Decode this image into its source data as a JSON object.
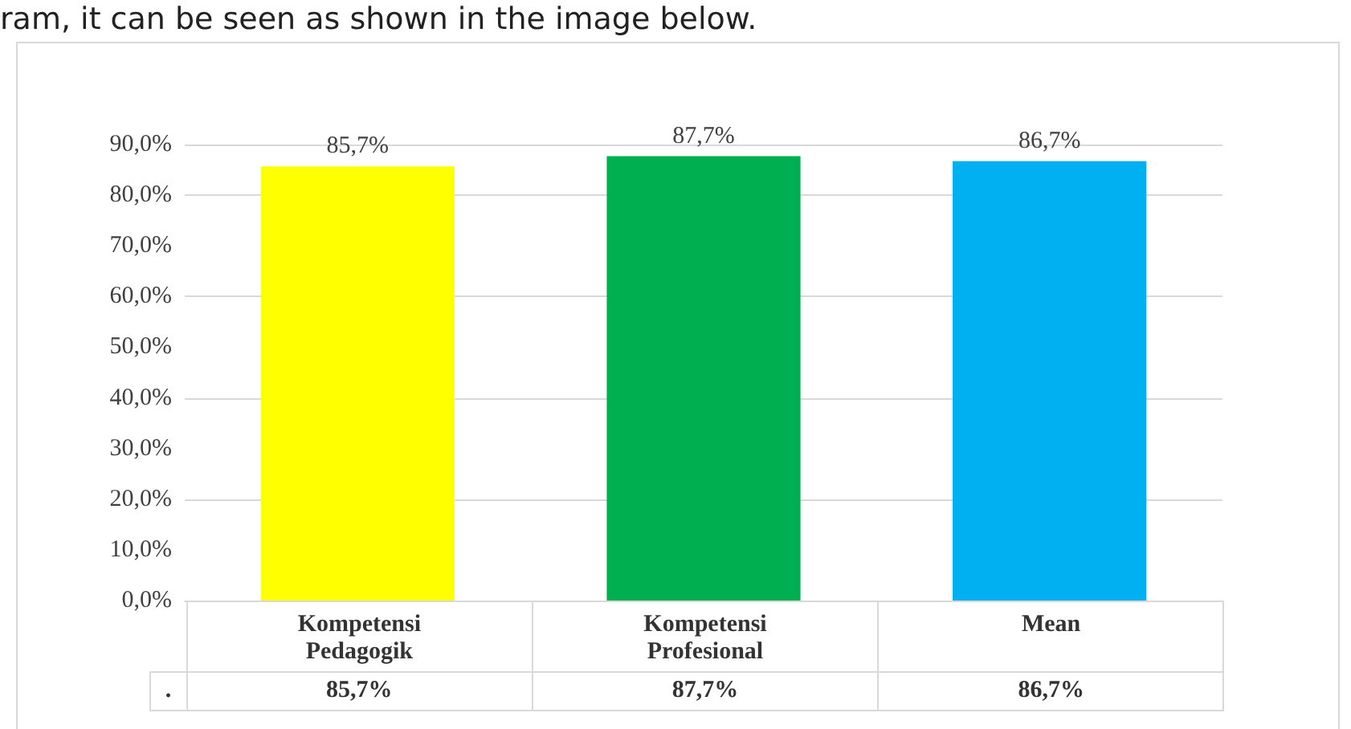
{
  "chart_data": {
    "type": "bar",
    "annotations": [
      "ram, it can be seen as shown in the image below."
    ],
    "categories": [
      "Kompetensi Pedagogik",
      "Kompetensi Profesional",
      "Mean"
    ],
    "series": [
      {
        "name": ".",
        "values": [
          85.7,
          87.7,
          86.7
        ],
        "colors": [
          "#ffff00",
          "#00b050",
          "#00b0f0"
        ],
        "value_labels": [
          "85,7%",
          "87,7%",
          "86,7%"
        ]
      }
    ],
    "ylim": [
      0,
      90
    ],
    "yticks": [
      {
        "value": 0,
        "label": "0,0%"
      },
      {
        "value": 10,
        "label": "10,0%"
      },
      {
        "value": 20,
        "label": "20,0%"
      },
      {
        "value": 30,
        "label": "30,0%"
      },
      {
        "value": 40,
        "label": "40,0%"
      },
      {
        "value": 50,
        "label": "50,0%"
      },
      {
        "value": 60,
        "label": "60,0%"
      },
      {
        "value": 70,
        "label": "70,0%"
      },
      {
        "value": 80,
        "label": "80,0%"
      },
      {
        "value": 90,
        "label": "90,0%"
      }
    ],
    "grid": "y",
    "legend": false
  }
}
